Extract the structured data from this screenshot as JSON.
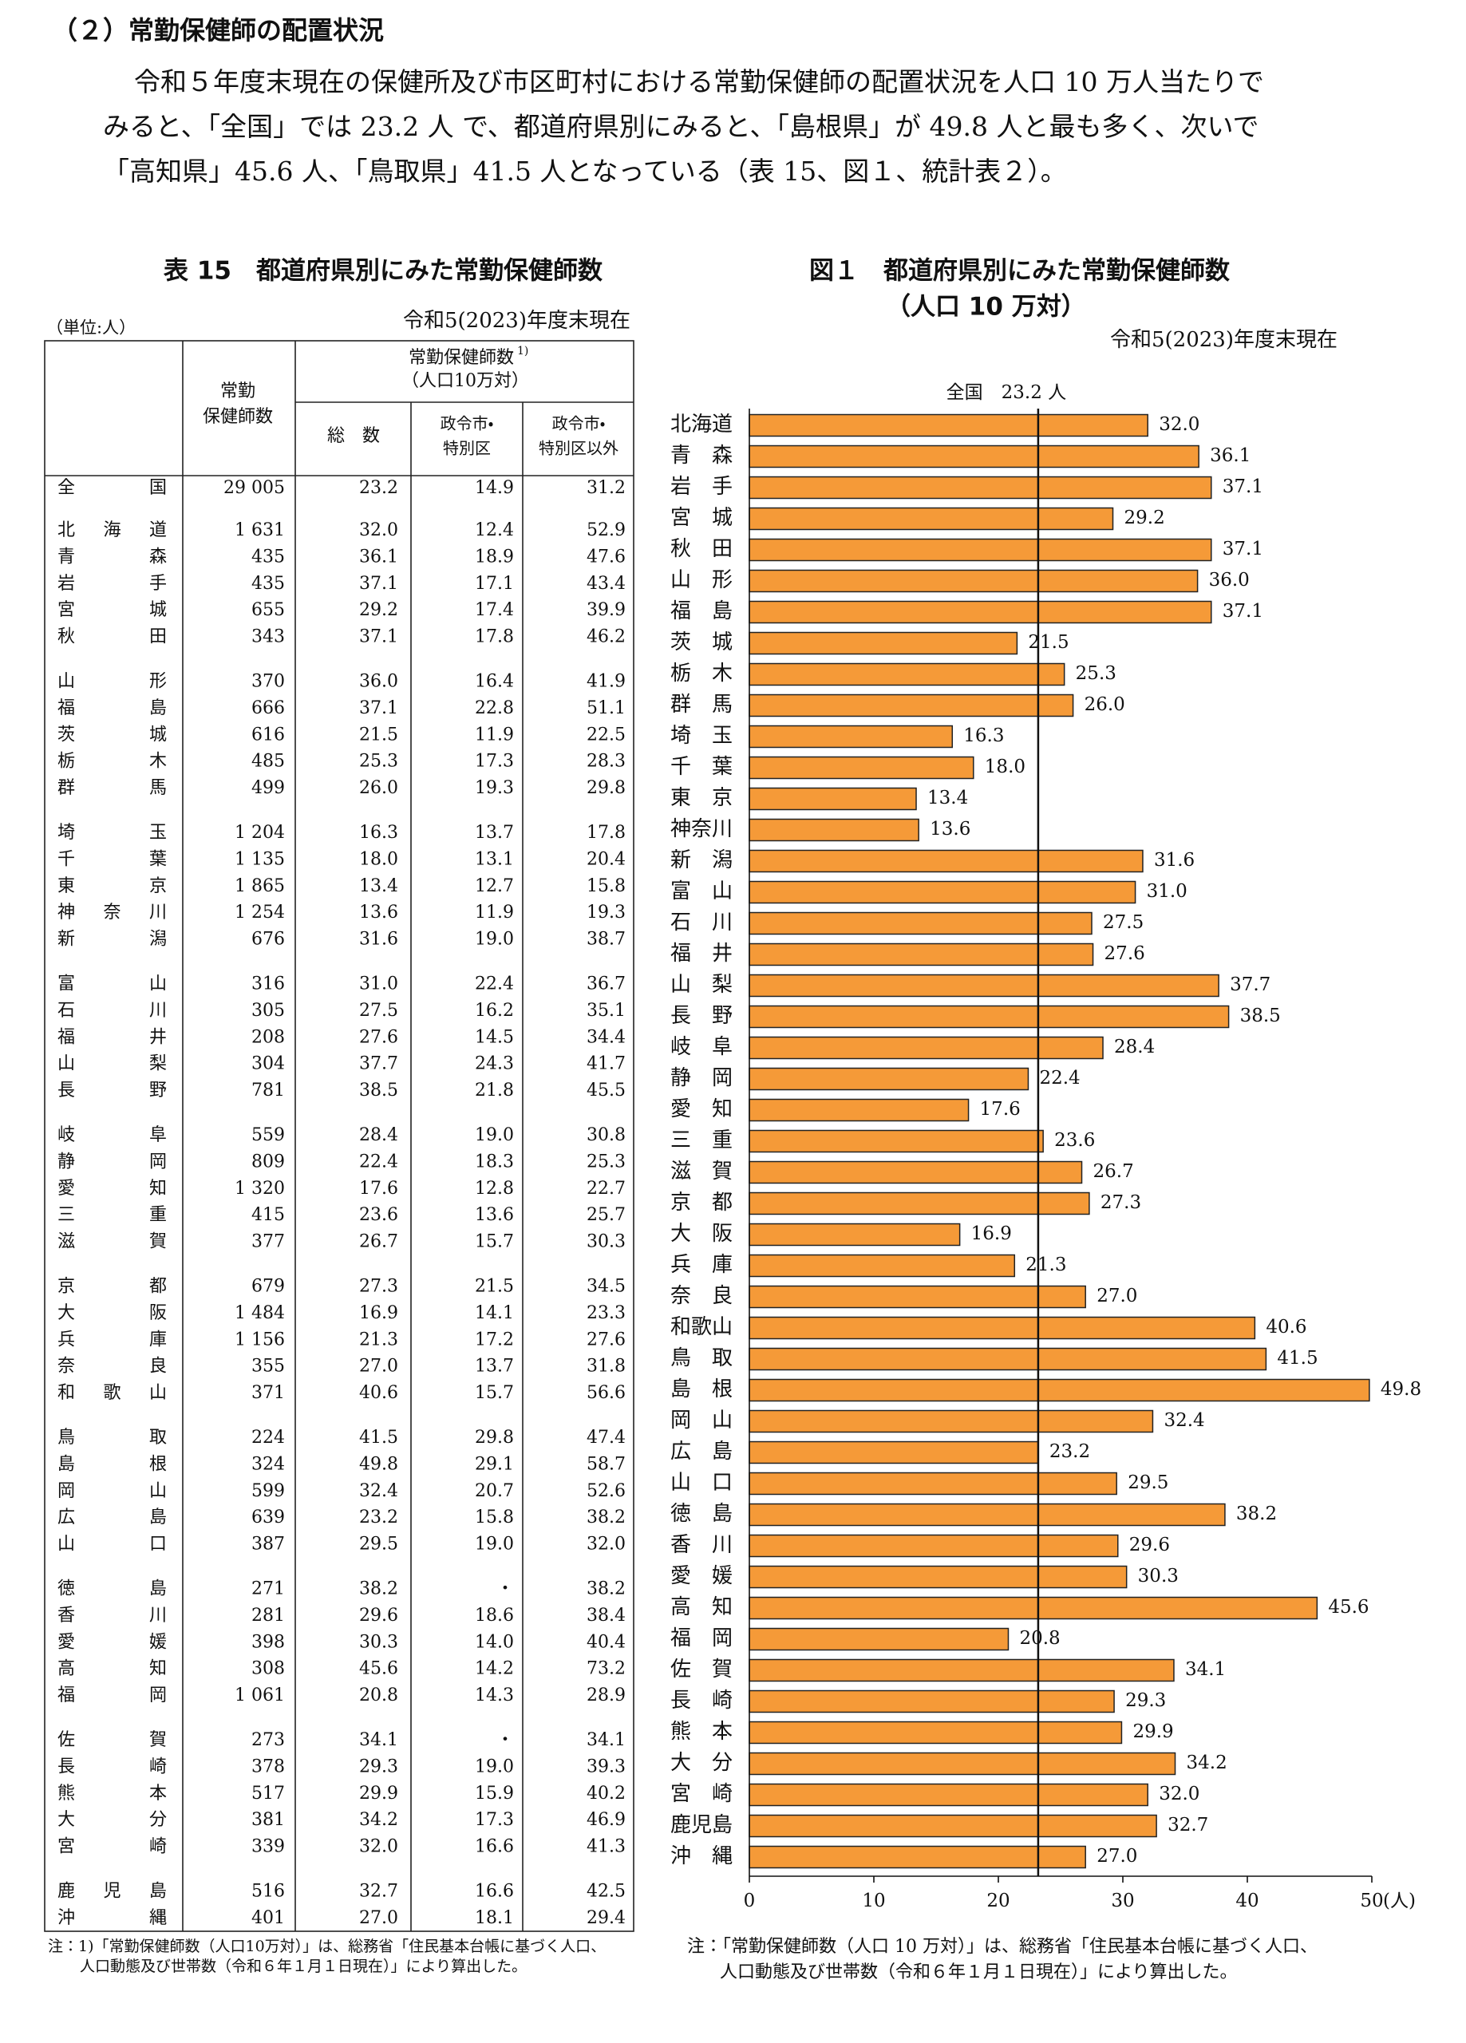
{
  "section_title": "（２）常勤保健師の配置状況",
  "paragraph": [
    "令和５年度末現在の保健所及び市区町村における常勤保健師の配置状況を人口 10 万人当たりで",
    "みると、「全国」では 23.2 人 で、都道府県別にみると、「島根県」が 49.8 人と最も多く、次いで",
    "「高知県」45.6 人、「鳥取県」41.5 人となっている（表 15、図１、統計表２）。"
  ],
  "table": {
    "title": "表 15　都道府県別にみた常勤保健師数",
    "unit": "（単位:人）",
    "date": "令和5(2023)年度末現在",
    "header": {
      "count": [
        "常勤",
        "保健師数"
      ],
      "group": "常勤保健師数",
      "group_note": "1)",
      "group_sub": "（人口10万対）",
      "total": "総　数",
      "designated": [
        "政令市・",
        "特別区"
      ],
      "other": [
        "政令市・",
        "特別区以外"
      ]
    },
    "rows": [
      [
        "全国",
        "29 005",
        "23.2",
        "14.9",
        "31.2"
      ],
      [
        "北海道",
        "1 631",
        "32.0",
        "12.4",
        "52.9"
      ],
      [
        "青森",
        "435",
        "36.1",
        "18.9",
        "47.6"
      ],
      [
        "岩手",
        "435",
        "37.1",
        "17.1",
        "43.4"
      ],
      [
        "宮城",
        "655",
        "29.2",
        "17.4",
        "39.9"
      ],
      [
        "秋田",
        "343",
        "37.1",
        "17.8",
        "46.2"
      ],
      [
        "山形",
        "370",
        "36.0",
        "16.4",
        "41.9"
      ],
      [
        "福島",
        "666",
        "37.1",
        "22.8",
        "51.1"
      ],
      [
        "茨城",
        "616",
        "21.5",
        "11.9",
        "22.5"
      ],
      [
        "栃木",
        "485",
        "25.3",
        "17.3",
        "28.3"
      ],
      [
        "群馬",
        "499",
        "26.0",
        "19.3",
        "29.8"
      ],
      [
        "埼玉",
        "1 204",
        "16.3",
        "13.7",
        "17.8"
      ],
      [
        "千葉",
        "1 135",
        "18.0",
        "13.1",
        "20.4"
      ],
      [
        "東京",
        "1 865",
        "13.4",
        "12.7",
        "15.8"
      ],
      [
        "神奈川",
        "1 254",
        "13.6",
        "11.9",
        "19.3"
      ],
      [
        "新潟",
        "676",
        "31.6",
        "19.0",
        "38.7"
      ],
      [
        "富山",
        "316",
        "31.0",
        "22.4",
        "36.7"
      ],
      [
        "石川",
        "305",
        "27.5",
        "16.2",
        "35.1"
      ],
      [
        "福井",
        "208",
        "27.6",
        "14.5",
        "34.4"
      ],
      [
        "山梨",
        "304",
        "37.7",
        "24.3",
        "41.7"
      ],
      [
        "長野",
        "781",
        "38.5",
        "21.8",
        "45.5"
      ],
      [
        "岐阜",
        "559",
        "28.4",
        "19.0",
        "30.8"
      ],
      [
        "静岡",
        "809",
        "22.4",
        "18.3",
        "25.3"
      ],
      [
        "愛知",
        "1 320",
        "17.6",
        "12.8",
        "22.7"
      ],
      [
        "三重",
        "415",
        "23.6",
        "13.6",
        "25.7"
      ],
      [
        "滋賀",
        "377",
        "26.7",
        "15.7",
        "30.3"
      ],
      [
        "京都",
        "679",
        "27.3",
        "21.5",
        "34.5"
      ],
      [
        "大阪",
        "1 484",
        "16.9",
        "14.1",
        "23.3"
      ],
      [
        "兵庫",
        "1 156",
        "21.3",
        "17.2",
        "27.6"
      ],
      [
        "奈良",
        "355",
        "27.0",
        "13.7",
        "31.8"
      ],
      [
        "和歌山",
        "371",
        "40.6",
        "15.7",
        "56.6"
      ],
      [
        "鳥取",
        "224",
        "41.5",
        "29.8",
        "47.4"
      ],
      [
        "島根",
        "324",
        "49.8",
        "29.1",
        "58.7"
      ],
      [
        "岡山",
        "599",
        "32.4",
        "20.7",
        "52.6"
      ],
      [
        "広島",
        "639",
        "23.2",
        "15.8",
        "38.2"
      ],
      [
        "山口",
        "387",
        "29.5",
        "19.0",
        "32.0"
      ],
      [
        "徳島",
        "271",
        "38.2",
        "・",
        "38.2"
      ],
      [
        "香川",
        "281",
        "29.6",
        "18.6",
        "38.4"
      ],
      [
        "愛媛",
        "398",
        "30.3",
        "14.0",
        "40.4"
      ],
      [
        "高知",
        "308",
        "45.6",
        "14.2",
        "73.2"
      ],
      [
        "福岡",
        "1 061",
        "20.8",
        "14.3",
        "28.9"
      ],
      [
        "佐賀",
        "273",
        "34.1",
        "・",
        "34.1"
      ],
      [
        "長崎",
        "378",
        "29.3",
        "19.0",
        "39.3"
      ],
      [
        "熊本",
        "517",
        "29.9",
        "15.9",
        "40.2"
      ],
      [
        "大分",
        "381",
        "34.2",
        "17.3",
        "46.9"
      ],
      [
        "宮崎",
        "339",
        "32.0",
        "16.6",
        "41.3"
      ],
      [
        "鹿児島",
        "516",
        "32.7",
        "16.6",
        "42.5"
      ],
      [
        "沖縄",
        "401",
        "27.0",
        "18.1",
        "29.4"
      ]
    ],
    "note": [
      "注：1)「常勤保健師数（人口10万対）」は、総務省「住民基本台帳に基づく人口、",
      "人口動態及び世帯数（令和６年１月１日現在）」により算出した。"
    ]
  },
  "chart_data": {
    "type": "hbar",
    "title": "図１　都道府県別にみた常勤保健師数",
    "subtitle": "（人口 10 万対）",
    "date": "令和5(2023)年度末現在",
    "color": "#f59a38",
    "categories": [
      "北海道",
      "青森",
      "岩手",
      "宮城",
      "秋田",
      "山形",
      "福島",
      "茨城",
      "栃木",
      "群馬",
      "埼玉",
      "千葉",
      "東京",
      "神奈川",
      "新潟",
      "富山",
      "石川",
      "福井",
      "山梨",
      "長野",
      "岐阜",
      "静岡",
      "愛知",
      "三重",
      "滋賀",
      "京都",
      "大阪",
      "兵庫",
      "奈良",
      "和歌山",
      "鳥取",
      "島根",
      "岡山",
      "広島",
      "山口",
      "徳島",
      "香川",
      "愛媛",
      "高知",
      "福岡",
      "佐賀",
      "長崎",
      "熊本",
      "大分",
      "宮崎",
      "鹿児島",
      "沖縄"
    ],
    "values": [
      32.0,
      36.1,
      37.1,
      29.2,
      37.1,
      36.0,
      37.1,
      21.5,
      25.3,
      26.0,
      16.3,
      18.0,
      13.4,
      13.6,
      31.6,
      31.0,
      27.5,
      27.6,
      37.7,
      38.5,
      28.4,
      22.4,
      17.6,
      23.6,
      26.7,
      27.3,
      16.9,
      21.3,
      27.0,
      40.6,
      41.5,
      49.8,
      32.4,
      23.2,
      29.5,
      38.2,
      29.6,
      30.3,
      45.6,
      20.8,
      34.1,
      29.3,
      29.9,
      34.2,
      32.0,
      32.7,
      27.0
    ],
    "value_labels": [
      "32.0",
      "36.1",
      "37.1",
      "29.2",
      "37.1",
      "36.0",
      "37.1",
      "21.5",
      "25.3",
      "26.0",
      "16.3",
      "18.0",
      "13.4",
      "13.6",
      "31.6",
      "31.0",
      "27.5",
      "27.6",
      "37.7",
      "38.5",
      "28.4",
      "22.4",
      "17.6",
      "23.6",
      "26.7",
      "27.3",
      "16.9",
      "21.3",
      "27.0",
      "40.6",
      "41.5",
      "49.8",
      "32.4",
      "23.2",
      "29.5",
      "38.2",
      "29.6",
      "30.3",
      "45.6",
      "20.8",
      "34.1",
      "29.3",
      "29.9",
      "34.2",
      "32.0",
      "32.7",
      "27.0"
    ],
    "xlim": [
      0,
      50
    ],
    "xticks": [
      0,
      10,
      20,
      30,
      40,
      50
    ],
    "xlabel": "(人)",
    "reference_line": {
      "value": 23.2,
      "label": "全国　23.2 人"
    },
    "note": [
      "注：「常勤保健師数（人口 10 万対）」は、総務省「住民基本台帳に基づく人口、",
      "人口動態及び世帯数（令和６年１月１日現在）」により算出した。"
    ]
  }
}
